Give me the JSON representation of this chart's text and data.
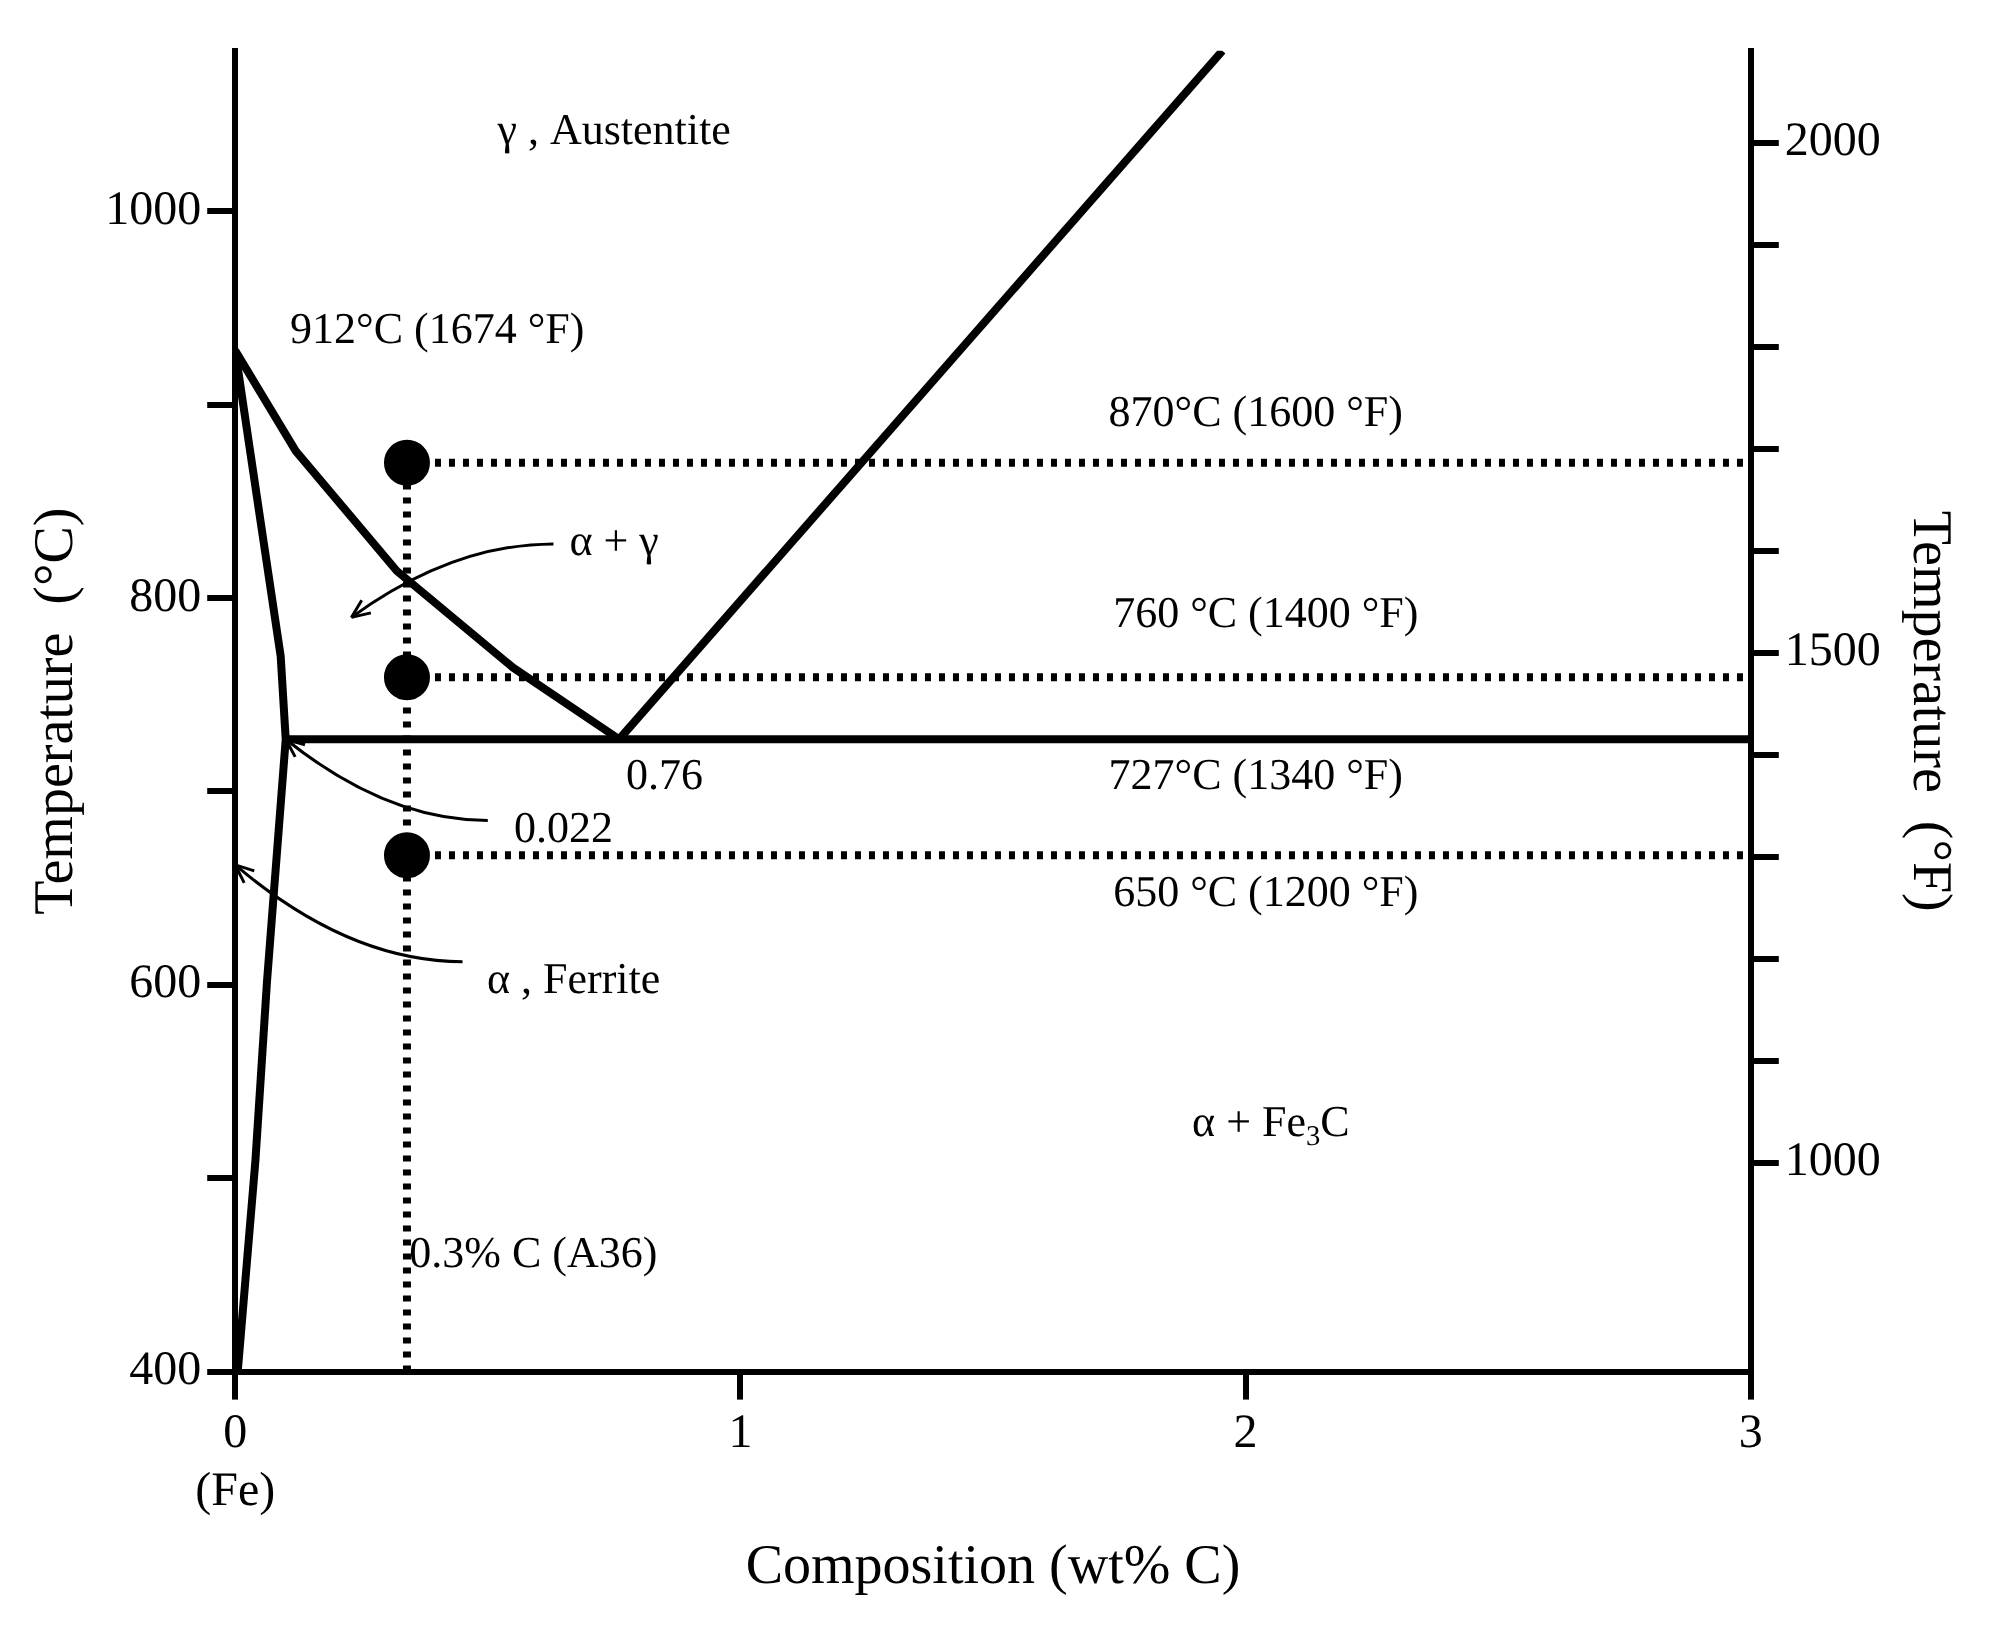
{
  "chart_data": {
    "type": "line",
    "xlabel": "Composition (wt% C)",
    "ylabel": "Temperature  (°C)",
    "y2label": "Temperature  (°F)",
    "xlim": [
      0,
      3
    ],
    "xticks": [
      {
        "value": 0,
        "label": "0\n(Fe)"
      },
      1,
      2,
      3
    ],
    "ylim": [
      400,
      1083
    ],
    "yticks": [
      400,
      {
        "value": 500,
        "label": null
      },
      600,
      {
        "value": 700,
        "label": null
      },
      800,
      {
        "value": 900,
        "label": null
      },
      1000
    ],
    "y2lim": [
      795,
      2090
    ],
    "y2ticks": [
      1000,
      {
        "value": 1100,
        "label": null
      },
      {
        "value": 1200,
        "label": null
      },
      {
        "value": 1300,
        "label": null
      },
      {
        "value": 1400,
        "label": null
      },
      1500,
      {
        "value": 1600,
        "label": null
      },
      {
        "value": 1700,
        "label": null
      },
      {
        "value": 1800,
        "label": null
      },
      {
        "value": 1900,
        "label": null
      },
      2000
    ],
    "grid": false,
    "legend": false,
    "series": [
      {
        "color": "#000000",
        "line_style": "solid",
        "x": [
          0,
          0.05,
          0.09,
          0.1,
          0.063,
          0.04,
          0.005
        ],
        "values": [
          928,
          840,
          770,
          727,
          602,
          509,
          400
        ]
      },
      {
        "color": "#000000",
        "line_style": "solid",
        "x": [
          0,
          0.12,
          0.32,
          0.55,
          0.76
        ],
        "values": [
          928,
          876,
          814,
          764,
          727
        ]
      },
      {
        "color": "#000000",
        "line_style": "solid",
        "x": [
          0.76,
          1.954
        ],
        "values": [
          727,
          1083
        ]
      },
      {
        "color": "#000000",
        "line_style": "solid",
        "x": [
          0.1,
          3
        ],
        "values": [
          727,
          727
        ]
      },
      {
        "color": "#000000",
        "line_style": "dotted",
        "x": [
          0.34,
          0.34
        ],
        "values": [
          400,
          870
        ]
      },
      {
        "color": "#000000",
        "line_style": "dotted",
        "x": [
          0.34,
          3
        ],
        "values": [
          870,
          870
        ]
      },
      {
        "color": "#000000",
        "line_style": "dotted",
        "x": [
          0.34,
          3
        ],
        "values": [
          759,
          759
        ]
      },
      {
        "color": "#000000",
        "line_style": "dotted",
        "x": [
          0.34,
          3
        ],
        "values": [
          667,
          667
        ]
      },
      {
        "type": "scatter",
        "color": "#000000",
        "x": [
          0.34,
          0.34,
          0.34
        ],
        "values": [
          870,
          759,
          667
        ]
      }
    ],
    "annotations": [
      "γ , Austentite",
      "912°C (1674 °F)",
      "α + γ",
      "0.76",
      {
        "text": "0.022",
        "x": 0.1,
        "y": 727
      },
      "α , Ferrite",
      "870°C (1600 °F)",
      "760 °C (1400 °F)",
      "727°C (1340 °F)",
      "650 °C (1200 °F)",
      "α + Fe$_{3}$C",
      "0.3% C (A36)"
    ]
  }
}
